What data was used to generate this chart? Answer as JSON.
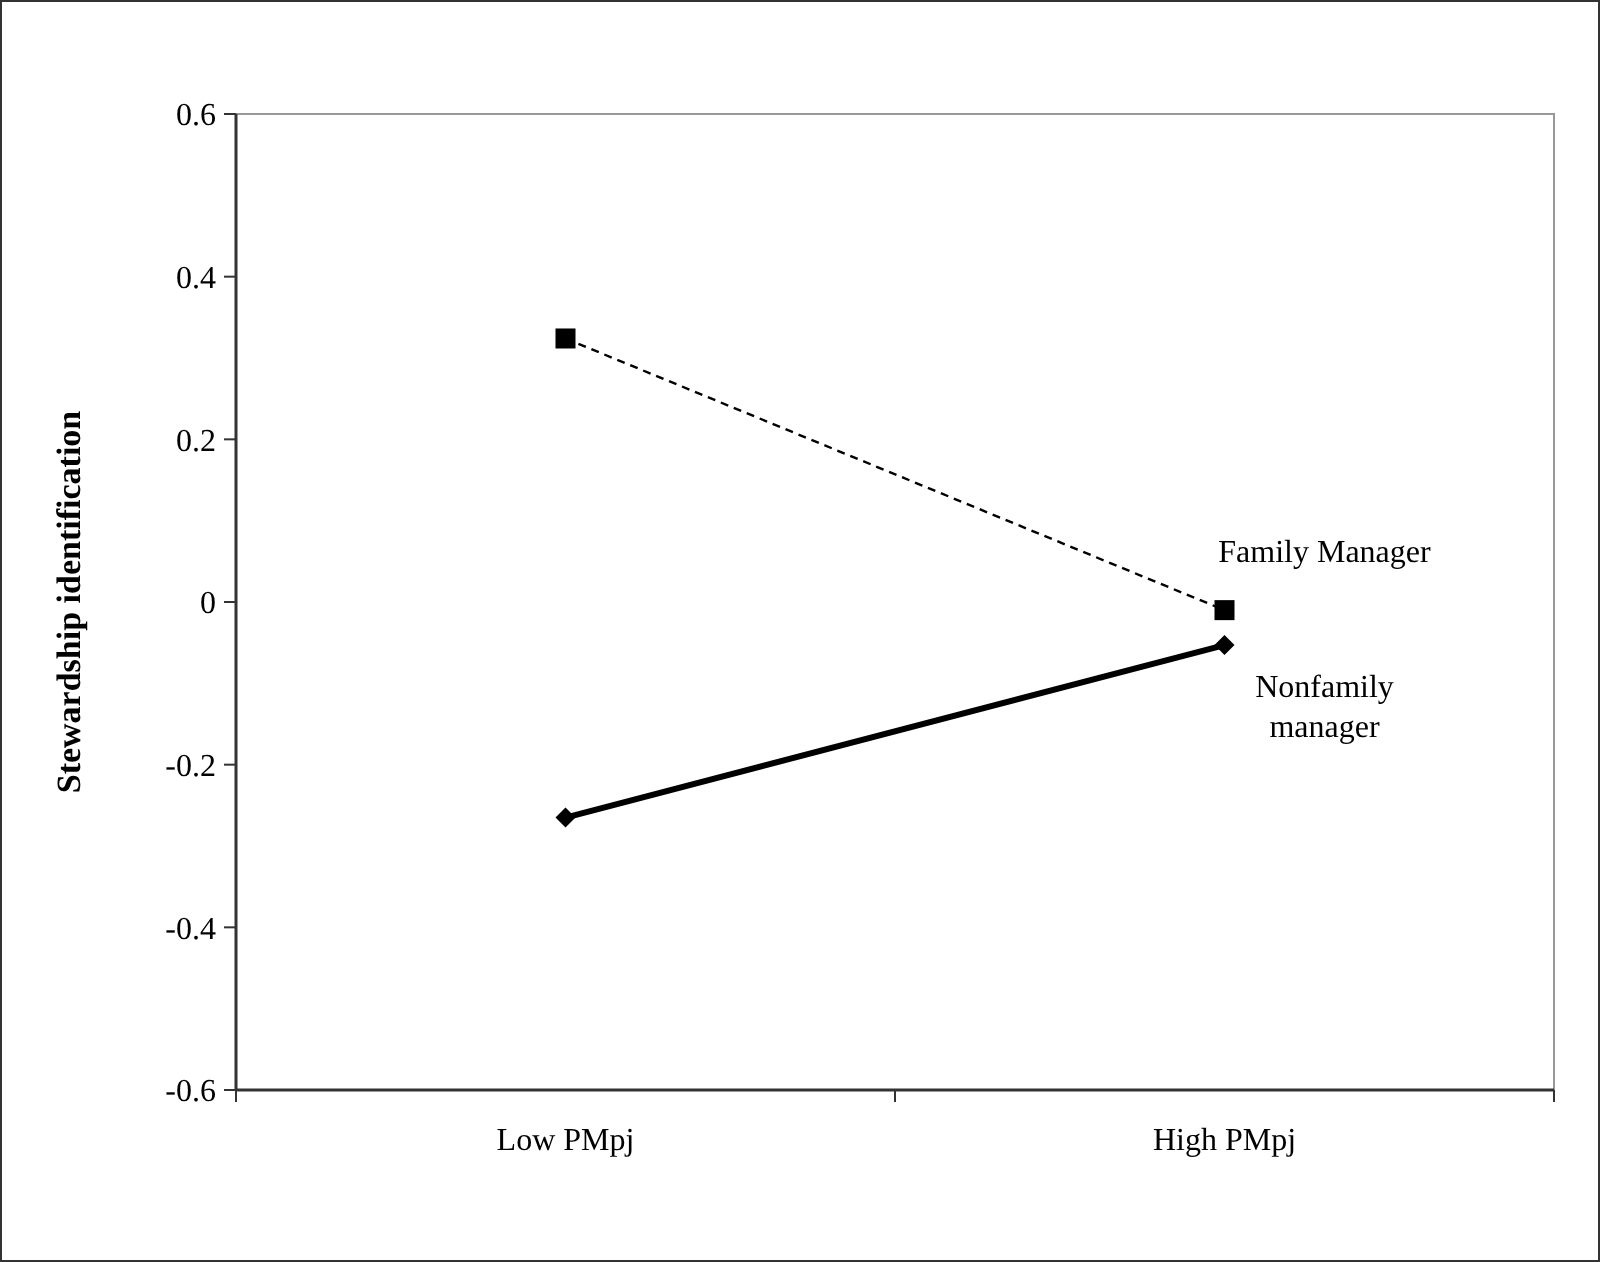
{
  "chart_data": {
    "type": "line",
    "ylabel": "Stewardship identification",
    "categories": [
      "Low PMpj",
      "High PMpj"
    ],
    "series": [
      {
        "name": "Family Manager",
        "color": "#000000",
        "values": [
          0.324,
          -0.01
        ],
        "marker": "square",
        "line_style": "dashed"
      },
      {
        "name": "Nonfamily manager",
        "color": "#000000",
        "values": [
          -0.265,
          -0.053
        ],
        "marker": "diamond",
        "line_style": "solid"
      }
    ],
    "ylim": [
      -0.6,
      0.6
    ],
    "yticks": [
      -0.6,
      -0.4,
      -0.2,
      0,
      0.2,
      0.4,
      0.6
    ],
    "grid": false
  }
}
